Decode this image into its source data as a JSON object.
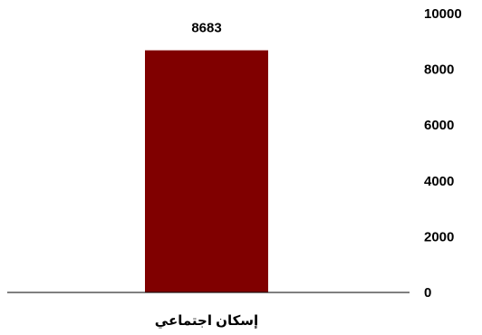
{
  "chart_data": {
    "type": "bar",
    "categories": [
      "إسكان اجتماعي"
    ],
    "values": [
      8683
    ],
    "data_labels": [
      "8683"
    ],
    "title": "",
    "xlabel": "",
    "ylabel": "",
    "ylim": [
      0,
      10000
    ],
    "yticks": [
      0,
      2000,
      4000,
      6000,
      8000,
      10000
    ],
    "y_axis_position": "right",
    "grid": false,
    "legend": "none",
    "bar_color": "#800000",
    "axis_color": "#000000"
  }
}
